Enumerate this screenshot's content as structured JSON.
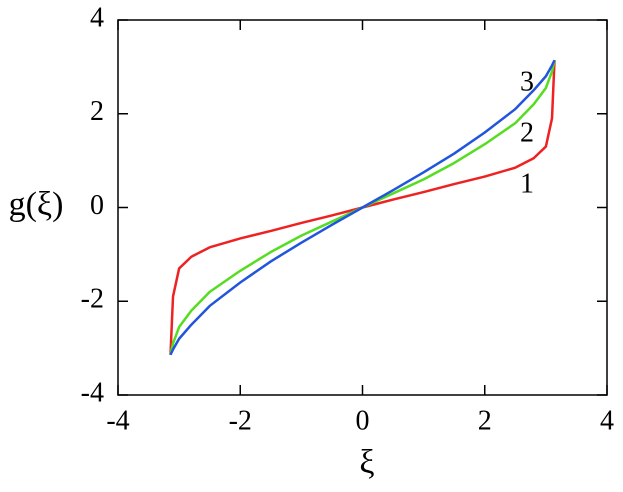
{
  "chart_data": {
    "type": "line",
    "xlabel": "ξ",
    "ylabel": "g(ξ)",
    "x": [
      -3.1416,
      -3.1,
      -3,
      -2.8,
      -2.5,
      -2,
      -1.5,
      -1,
      -0.5,
      0,
      0.5,
      1,
      1.5,
      2,
      2.5,
      2.8,
      3,
      3.1,
      3.1416
    ],
    "series": [
      {
        "name": "1",
        "color": "#ee2222",
        "values": [
          -3.1416,
          -1.9,
          -1.3,
          -1.05,
          -0.85,
          -0.66,
          -0.5,
          -0.33,
          -0.17,
          0,
          0.17,
          0.33,
          0.5,
          0.66,
          0.85,
          1.05,
          1.3,
          1.9,
          3.1416
        ]
      },
      {
        "name": "2",
        "color": "#55dd22",
        "values": [
          -3.1416,
          -2.9,
          -2.55,
          -2.2,
          -1.8,
          -1.35,
          -0.95,
          -0.6,
          -0.3,
          0,
          0.3,
          0.6,
          0.95,
          1.35,
          1.8,
          2.2,
          2.55,
          2.9,
          3.1416
        ]
      },
      {
        "name": "3",
        "color": "#2255dd",
        "values": [
          -3.1416,
          -3.03,
          -2.8,
          -2.5,
          -2.1,
          -1.6,
          -1.15,
          -0.75,
          -0.37,
          0,
          0.37,
          0.75,
          1.15,
          1.6,
          2.1,
          2.5,
          2.8,
          3.03,
          3.1416
        ]
      }
    ],
    "xlim": [
      -4,
      4
    ],
    "xticks": [
      -4,
      -2,
      0,
      2,
      4
    ],
    "ylim": [
      -4,
      4
    ],
    "yticks": [
      -4,
      -2,
      0,
      2,
      4
    ]
  }
}
